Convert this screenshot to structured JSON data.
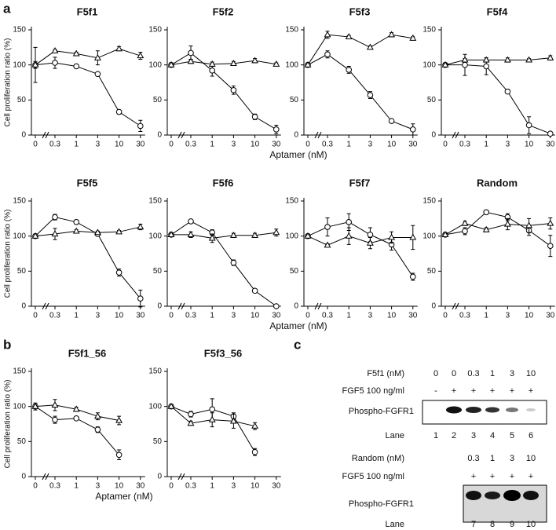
{
  "chart_data": [
    {
      "type": "line",
      "title": "F5f1",
      "ylabel": "Cell proliferation ratio (%)",
      "categories": [
        "0",
        "0.3",
        "1",
        "3",
        "10",
        "30"
      ],
      "ylim": [
        0,
        150
      ],
      "yticks": [
        0,
        50,
        100,
        150
      ],
      "series": [
        {
          "marker": "circle",
          "values": [
            100,
            103,
            98,
            87,
            33,
            13
          ],
          "errors": [
            25,
            8,
            2,
            2,
            3,
            8
          ]
        },
        {
          "marker": "triangle",
          "values": [
            100,
            120,
            116,
            110,
            123,
            113
          ],
          "errors": [
            5,
            2,
            2,
            10,
            3,
            5
          ]
        }
      ]
    },
    {
      "type": "line",
      "title": "F5f2",
      "xlabel": "Aptamer (nM)",
      "categories": [
        "0",
        "0.3",
        "1",
        "3",
        "10",
        "30"
      ],
      "ylim": [
        0,
        150
      ],
      "yticks": [
        0,
        50,
        100,
        150
      ],
      "series": [
        {
          "marker": "circle",
          "values": [
            100,
            117,
            92,
            64,
            26,
            8
          ],
          "errors": [
            3,
            10,
            8,
            6,
            4,
            6
          ]
        },
        {
          "marker": "triangle",
          "values": [
            100,
            105,
            101,
            102,
            106,
            101
          ],
          "errors": [
            3,
            3,
            3,
            3,
            3,
            2
          ]
        }
      ]
    },
    {
      "type": "line",
      "title": "F5f3",
      "categories": [
        "0",
        "0.3",
        "1",
        "3",
        "10",
        "30"
      ],
      "ylim": [
        0,
        150
      ],
      "yticks": [
        0,
        50,
        100,
        150
      ],
      "series": [
        {
          "marker": "circle",
          "values": [
            100,
            115,
            93,
            57,
            20,
            8
          ],
          "errors": [
            3,
            5,
            5,
            5,
            2,
            8
          ]
        },
        {
          "marker": "triangle",
          "values": [
            100,
            143,
            140,
            125,
            143,
            138
          ],
          "errors": [
            3,
            5,
            2,
            2,
            3,
            2
          ]
        }
      ]
    },
    {
      "type": "line",
      "title": "F5f4",
      "categories": [
        "0",
        "0.3",
        "1",
        "3",
        "10",
        "30"
      ],
      "ylim": [
        0,
        150
      ],
      "yticks": [
        0,
        50,
        100,
        150
      ],
      "series": [
        {
          "marker": "circle",
          "values": [
            100,
            100,
            98,
            62,
            14,
            2
          ],
          "errors": [
            3,
            15,
            12,
            3,
            12,
            2
          ]
        },
        {
          "marker": "triangle",
          "values": [
            100,
            107,
            107,
            107,
            107,
            110
          ],
          "errors": [
            2,
            2,
            3,
            3,
            2,
            3
          ]
        }
      ]
    },
    {
      "type": "line",
      "title": "F5f5",
      "ylabel": "Cell proliferation ratio (%)",
      "categories": [
        "0",
        "0.3",
        "1",
        "3",
        "10",
        "30"
      ],
      "ylim": [
        0,
        150
      ],
      "yticks": [
        0,
        50,
        100,
        150
      ],
      "series": [
        {
          "marker": "circle",
          "values": [
            100,
            127,
            120,
            103,
            48,
            11
          ],
          "errors": [
            3,
            4,
            3,
            3,
            5,
            12
          ]
        },
        {
          "marker": "triangle",
          "values": [
            100,
            103,
            107,
            105,
            106,
            113
          ],
          "errors": [
            3,
            8,
            2,
            2,
            2,
            4
          ]
        }
      ]
    },
    {
      "type": "line",
      "title": "F5f6",
      "xlabel": "Aptamer (nM)",
      "categories": [
        "0",
        "0.3",
        "1",
        "3",
        "10",
        "30"
      ],
      "ylim": [
        0,
        150
      ],
      "yticks": [
        0,
        50,
        100,
        150
      ],
      "series": [
        {
          "marker": "circle",
          "values": [
            102,
            121,
            105,
            62,
            22,
            0
          ],
          "errors": [
            3,
            2,
            4,
            4,
            2,
            1
          ]
        },
        {
          "marker": "triangle",
          "values": [
            102,
            102,
            97,
            101,
            101,
            105
          ],
          "errors": [
            2,
            4,
            6,
            3,
            3,
            5
          ]
        }
      ]
    },
    {
      "type": "line",
      "title": "F5f7",
      "categories": [
        "0",
        "0.3",
        "1",
        "3",
        "10",
        "30"
      ],
      "ylim": [
        0,
        150
      ],
      "yticks": [
        0,
        50,
        100,
        150
      ],
      "series": [
        {
          "marker": "circle",
          "values": [
            100,
            113,
            120,
            102,
            88,
            42
          ],
          "errors": [
            3,
            13,
            12,
            10,
            8,
            5
          ]
        },
        {
          "marker": "triangle",
          "values": [
            100,
            87,
            100,
            90,
            98,
            98
          ],
          "errors": [
            2,
            2,
            12,
            8,
            8,
            17
          ]
        }
      ]
    },
    {
      "type": "line",
      "title": "Random",
      "categories": [
        "0",
        "0.3",
        "1",
        "3",
        "10",
        "30"
      ],
      "ylim": [
        0,
        150
      ],
      "yticks": [
        0,
        50,
        100,
        150
      ],
      "series": [
        {
          "marker": "circle",
          "values": [
            102,
            107,
            134,
            127,
            108,
            86
          ],
          "errors": [
            3,
            5,
            3,
            5,
            7,
            15
          ]
        },
        {
          "marker": "triangle",
          "values": [
            102,
            118,
            109,
            117,
            115,
            118
          ],
          "errors": [
            2,
            3,
            3,
            8,
            10,
            8
          ]
        }
      ]
    },
    {
      "type": "line",
      "title": "F5f1_56",
      "ylabel": "Cell proliferation ratio (%)",
      "xlabel": "Aptamer (nM)",
      "categories": [
        "0",
        "0.3",
        "1",
        "3",
        "10",
        "30"
      ],
      "ylim": [
        0,
        150
      ],
      "yticks": [
        0,
        50,
        100,
        150
      ],
      "series": [
        {
          "marker": "circle",
          "values": [
            100,
            81,
            83,
            67,
            31,
            null
          ],
          "errors": [
            3,
            5,
            2,
            4,
            7,
            null
          ]
        },
        {
          "marker": "triangle",
          "values": [
            100,
            102,
            96,
            86,
            80,
            null
          ],
          "errors": [
            5,
            8,
            3,
            5,
            6,
            null
          ]
        }
      ]
    },
    {
      "type": "line",
      "title": "F5f3_56",
      "categories": [
        "0",
        "0.3",
        "1",
        "3",
        "10",
        "30"
      ],
      "ylim": [
        0,
        150
      ],
      "yticks": [
        0,
        50,
        100,
        150
      ],
      "series": [
        {
          "marker": "circle",
          "values": [
            100,
            89,
            96,
            86,
            35,
            null
          ],
          "errors": [
            3,
            4,
            15,
            5,
            5,
            null
          ]
        },
        {
          "marker": "triangle",
          "values": [
            100,
            76,
            81,
            79,
            72,
            null
          ],
          "errors": [
            3,
            3,
            10,
            10,
            5,
            null
          ]
        }
      ]
    }
  ],
  "panels": [
    "a",
    "b",
    "c"
  ],
  "blots": [
    {
      "rows": [
        {
          "label": "F5f1 (nM)",
          "lanes": [
            "0",
            "0",
            "0.3",
            "1",
            "3",
            "10"
          ]
        },
        {
          "label": "FGF5 100 ng/ml",
          "lanes": [
            "-",
            "+",
            "+",
            "+",
            "+",
            "+"
          ]
        },
        {
          "label": "Phospho-FGFR1"
        },
        {
          "label": "Lane",
          "lanes": [
            "1",
            "2",
            "3",
            "4",
            "5",
            "6"
          ]
        }
      ]
    },
    {
      "rows": [
        {
          "label": "Random (nM)",
          "lanes": [
            "0.3",
            "1",
            "3",
            "10"
          ]
        },
        {
          "label": "FGF5 100 ng/ml",
          "lanes": [
            "+",
            "+",
            "+",
            "+"
          ]
        },
        {
          "label": "Phospho-FGFR1"
        },
        {
          "label": "Lane",
          "lanes": [
            "7",
            "8",
            "9",
            "10"
          ]
        }
      ]
    }
  ]
}
